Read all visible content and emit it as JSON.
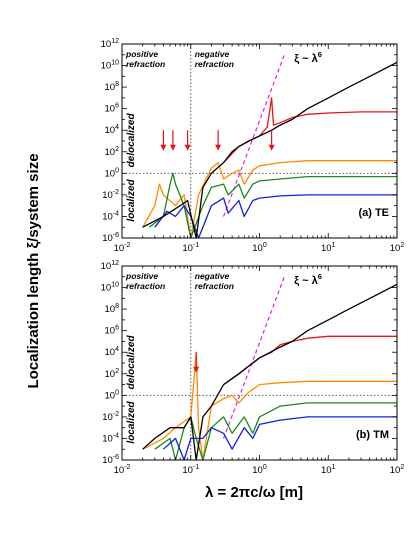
{
  "chart_data": {
    "type": "line",
    "ylabel": "Localization length ξ/system size",
    "xlabel": "λ = 2πc/ω [m]",
    "xscale": "log",
    "yscale": "log",
    "xlim": [
      0.01,
      100
    ],
    "ylim": [
      1e-06,
      1000000000000.0
    ],
    "x_ticks": [
      {
        "mant": "10",
        "exp": "-2"
      },
      {
        "mant": "10",
        "exp": "-1"
      },
      {
        "mant": "10",
        "exp": "0"
      },
      {
        "mant": "10",
        "exp": "1"
      },
      {
        "mant": "10",
        "exp": "2"
      }
    ],
    "y_ticks": [
      {
        "mant": "10",
        "exp": "-6"
      },
      {
        "mant": "10",
        "exp": "-4"
      },
      {
        "mant": "10",
        "exp": "-2"
      },
      {
        "mant": "10",
        "exp": "0"
      },
      {
        "mant": "10",
        "exp": "2"
      },
      {
        "mant": "10",
        "exp": "4"
      },
      {
        "mant": "10",
        "exp": "6"
      },
      {
        "mant": "10",
        "exp": "8"
      },
      {
        "mant": "10",
        "exp": "10"
      },
      {
        "mant": "10",
        "exp": "12"
      }
    ],
    "colors": {
      "black": "#000000",
      "red": "#e8141c",
      "orange": "#ff8c00",
      "green": "#1a8a1a",
      "blue": "#1020e0",
      "magenta": "#e020e0",
      "arrow": "#e8141c"
    },
    "panels": [
      {
        "label": "(a) TE",
        "positive_label": [
          "positive",
          "refraction"
        ],
        "negative_label": [
          "negative",
          "refraction"
        ],
        "scaling": {
          "text": "ξ ~ λ",
          "exp": "6"
        },
        "delocalized": "delocalized",
        "localized": "localized",
        "boundary_x": 0.1,
        "reference_y": 1,
        "scaling_line": [
          [
            0.3,
            0.0001
          ],
          [
            2.3,
            100000000000.0
          ]
        ],
        "arrows_x": [
          0.04,
          0.055,
          0.09,
          0.25,
          1.5
        ],
        "series": [
          {
            "color": "black",
            "points": [
              [
                0.02,
                1e-05
              ],
              [
                0.04,
                0.0001
              ],
              [
                0.07,
                0.001
              ],
              [
                0.09,
                0.003
              ],
              [
                0.12,
                5e-07
              ],
              [
                0.15,
                0.05
              ],
              [
                0.2,
                1
              ],
              [
                0.3,
                10
              ],
              [
                0.4,
                100
              ],
              [
                0.5,
                300
              ],
              [
                0.7,
                1000
              ],
              [
                1,
                3000
              ],
              [
                1.5,
                10000
              ],
              [
                2,
                30000
              ],
              [
                3,
                100000
              ],
              [
                5,
                1000000
              ],
              [
                10,
                10000000
              ],
              [
                20,
                100000000
              ],
              [
                50,
                2000000000
              ],
              [
                100,
                20000000000
              ]
            ]
          },
          {
            "color": "red",
            "points": [
              [
                0.3,
                10
              ],
              [
                0.5,
                300
              ],
              [
                0.7,
                1000
              ],
              [
                1,
                3000
              ],
              [
                1.3,
                20000
              ],
              [
                1.5,
                10000000
              ],
              [
                1.6,
                30000
              ],
              [
                2,
                50000
              ],
              [
                3,
                150000
              ],
              [
                5,
                300000
              ],
              [
                10,
                400000
              ],
              [
                30,
                500000
              ],
              [
                100,
                500000
              ]
            ]
          },
          {
            "color": "orange",
            "points": [
              [
                0.02,
                1e-05
              ],
              [
                0.03,
                0.001
              ],
              [
                0.035,
                0.1
              ],
              [
                0.04,
                0.01
              ],
              [
                0.06,
                0.001
              ],
              [
                0.08,
                0.01
              ],
              [
                0.1,
                1e-06
              ],
              [
                0.13,
                0.01
              ],
              [
                0.2,
                3
              ],
              [
                0.25,
                10
              ],
              [
                0.3,
                0.3
              ],
              [
                0.4,
                1
              ],
              [
                0.5,
                2
              ],
              [
                0.6,
                0.1
              ],
              [
                0.8,
                2
              ],
              [
                1,
                5
              ],
              [
                2,
                10
              ],
              [
                5,
                15
              ],
              [
                10,
                15
              ],
              [
                30,
                15
              ],
              [
                100,
                15
              ]
            ]
          },
          {
            "color": "green",
            "points": [
              [
                0.025,
                1e-05
              ],
              [
                0.04,
                0.0001
              ],
              [
                0.05,
                0.1
              ],
              [
                0.055,
                1
              ],
              [
                0.06,
                0.1
              ],
              [
                0.08,
                0.001
              ],
              [
                0.1,
                1e-06
              ],
              [
                0.15,
                0.001
              ],
              [
                0.2,
                0.05
              ],
              [
                0.3,
                0.1
              ],
              [
                0.35,
                0.01
              ],
              [
                0.5,
                0.1
              ],
              [
                0.6,
                0.005
              ],
              [
                0.8,
                0.1
              ],
              [
                1,
                0.2
              ],
              [
                2,
                0.3
              ],
              [
                5,
                0.5
              ],
              [
                10,
                0.5
              ],
              [
                100,
                0.5
              ]
            ]
          },
          {
            "color": "blue",
            "points": [
              [
                0.03,
                1e-05
              ],
              [
                0.045,
                0.0003
              ],
              [
                0.06,
                0.0001
              ],
              [
                0.08,
                0.001
              ],
              [
                0.1,
                0.0001
              ],
              [
                0.13,
                1e-06
              ],
              [
                0.2,
                0.001
              ],
              [
                0.3,
                0.005
              ],
              [
                0.35,
                0.0002
              ],
              [
                0.5,
                0.003
              ],
              [
                0.6,
                0.0001
              ],
              [
                0.8,
                0.003
              ],
              [
                1,
                0.005
              ],
              [
                2,
                0.008
              ],
              [
                5,
                0.01
              ],
              [
                10,
                0.01
              ],
              [
                100,
                0.01
              ]
            ]
          }
        ]
      },
      {
        "label": "(b) TM",
        "positive_label": [
          "positive",
          "refraction"
        ],
        "negative_label": [
          "negative",
          "refraction"
        ],
        "scaling": {
          "text": "ξ ~ λ",
          "exp": "6"
        },
        "delocalized": "delocalized",
        "localized": "localized",
        "boundary_x": 0.1,
        "reference_y": 1,
        "scaling_line": [
          [
            0.3,
            0.0001
          ],
          [
            2.3,
            100000000000.0
          ]
        ],
        "arrows_x": [
          0.12
        ],
        "series": [
          {
            "color": "black",
            "points": [
              [
                0.02,
                1e-05
              ],
              [
                0.03,
                0.0001
              ],
              [
                0.05,
                0.001
              ],
              [
                0.08,
                0.001
              ],
              [
                0.1,
                0.01
              ],
              [
                0.12,
                1e-06
              ],
              [
                0.15,
                0.01
              ],
              [
                0.2,
                0.1
              ],
              [
                0.3,
                10
              ],
              [
                0.5,
                100
              ],
              [
                1,
                3000
              ],
              [
                2,
                30000
              ],
              [
                3,
                100000
              ],
              [
                5,
                1000000
              ],
              [
                10,
                10000000
              ],
              [
                20,
                100000000
              ],
              [
                50,
                2000000000
              ],
              [
                100,
                20000000000
              ]
            ]
          },
          {
            "color": "red",
            "points": [
              [
                0.3,
                10
              ],
              [
                0.5,
                100
              ],
              [
                1,
                3000
              ],
              [
                1.5,
                10000
              ],
              [
                2,
                50000
              ],
              [
                3,
                100000
              ],
              [
                5,
                200000
              ],
              [
                10,
                300000
              ],
              [
                30,
                300000
              ],
              [
                100,
                300000
              ]
            ]
          },
          {
            "color": "orange",
            "points": [
              [
                0.02,
                1e-05
              ],
              [
                0.04,
                0.0001
              ],
              [
                0.06,
                0.001
              ],
              [
                0.1,
                0.01
              ],
              [
                0.12,
                10000
              ],
              [
                0.13,
                0.001
              ],
              [
                0.15,
                1e-06
              ],
              [
                0.2,
                0.1
              ],
              [
                0.3,
                0.5
              ],
              [
                0.4,
                1
              ],
              [
                0.5,
                0.2
              ],
              [
                0.7,
                2
              ],
              [
                1,
                10
              ],
              [
                2,
                15
              ],
              [
                5,
                20
              ],
              [
                10,
                20
              ],
              [
                100,
                20
              ]
            ]
          },
          {
            "color": "green",
            "points": [
              [
                0.03,
                1e-05
              ],
              [
                0.05,
                0.0001
              ],
              [
                0.06,
                1e-06
              ],
              [
                0.08,
                0.001
              ],
              [
                0.1,
                0.01
              ],
              [
                0.12,
                0.0001
              ],
              [
                0.15,
                1e-06
              ],
              [
                0.2,
                0.001
              ],
              [
                0.3,
                0.01
              ],
              [
                0.4,
                0.0003
              ],
              [
                0.6,
                0.01
              ],
              [
                0.8,
                0.0003
              ],
              [
                1,
                0.01
              ],
              [
                2,
                0.1
              ],
              [
                5,
                0.2
              ],
              [
                10,
                0.2
              ],
              [
                100,
                0.2
              ]
            ]
          },
          {
            "color": "blue",
            "points": [
              [
                0.04,
                1e-05
              ],
              [
                0.06,
                0.0001
              ],
              [
                0.08,
                1e-06
              ],
              [
                0.1,
                0.0001
              ],
              [
                0.15,
                0.0001
              ],
              [
                0.2,
                0.001
              ],
              [
                0.3,
                0.0003
              ],
              [
                0.4,
                1e-05
              ],
              [
                0.6,
                0.001
              ],
              [
                0.8,
                0.0001
              ],
              [
                1,
                0.002
              ],
              [
                2,
                0.005
              ],
              [
                5,
                0.01
              ],
              [
                10,
                0.01
              ],
              [
                100,
                0.01
              ]
            ]
          }
        ]
      }
    ]
  }
}
